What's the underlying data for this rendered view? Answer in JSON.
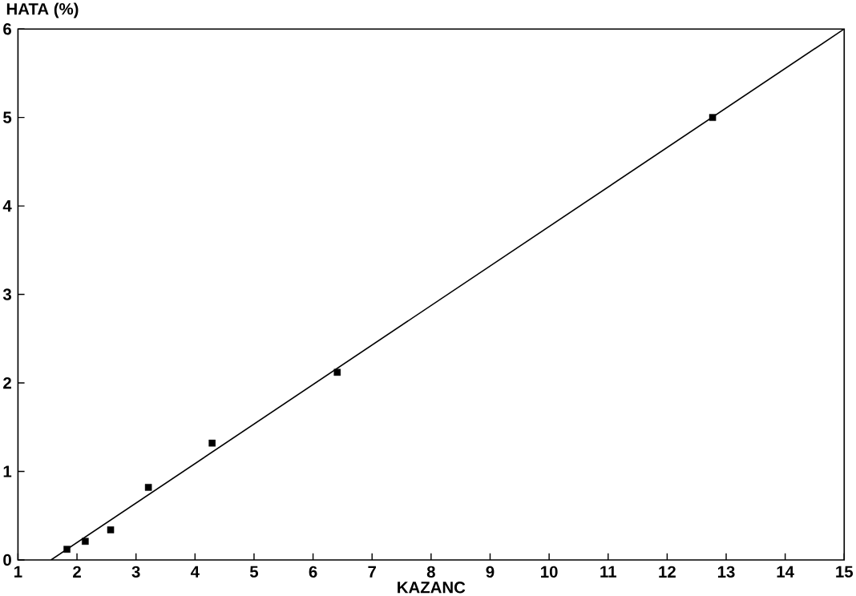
{
  "chart_data": {
    "type": "scatter",
    "xlabel": "KAZANC",
    "ylabel": "HATA (%)",
    "xlim": [
      1,
      15
    ],
    "ylim": [
      0,
      6
    ],
    "xticks": [
      1,
      2,
      3,
      4,
      5,
      6,
      7,
      8,
      9,
      10,
      11,
      12,
      13,
      14,
      15
    ],
    "yticks": [
      0,
      1,
      2,
      3,
      4,
      5,
      6
    ],
    "grid": false,
    "series": [
      {
        "marker": "square",
        "color": "#000000",
        "x": [
          1.83,
          2.14,
          2.57,
          3.21,
          4.29,
          6.41,
          12.77
        ],
        "values": [
          0.12,
          0.21,
          0.34,
          0.82,
          1.32,
          2.12,
          5.0
        ]
      },
      {
        "type": "line",
        "color": "#000000",
        "x": [
          1.56,
          15
        ],
        "values": [
          0,
          6
        ]
      }
    ]
  }
}
